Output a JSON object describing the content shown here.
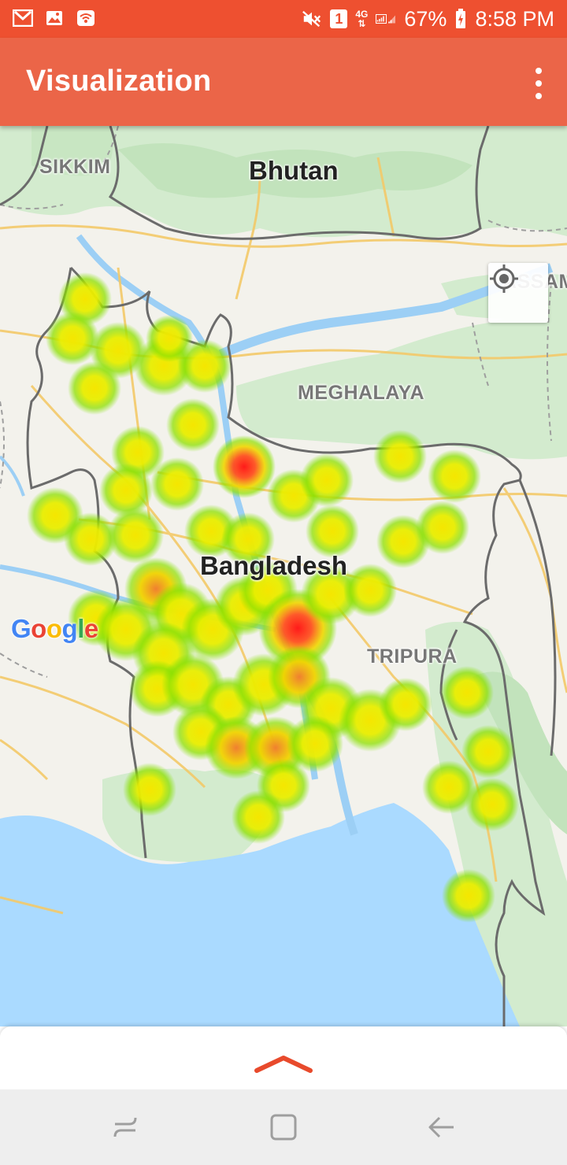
{
  "status_bar": {
    "battery": "67%",
    "time": "8:58 PM",
    "sim_badge": "1",
    "network_type": "4G",
    "icons": [
      "gmail-icon",
      "gallery-icon",
      "wifi-hotspot-icon",
      "mute-icon",
      "sim-icon",
      "signal-icon",
      "battery-icon"
    ]
  },
  "app_bar": {
    "title": "Visualization",
    "menu_icon": "more-vert-icon"
  },
  "map": {
    "labels": {
      "sikkim": "SIKKIM",
      "bhutan": "Bhutan",
      "assam": "ASSAM",
      "meghalaya": "MEGHALAYA",
      "bangladesh": "Bangladesh",
      "tripura": "TRIPURA"
    },
    "attribution": "Google",
    "locate_icon": "my-location-icon",
    "heatmap_colors": {
      "low": "#7ee000",
      "mid": "#f0e000",
      "high": "#ff2020"
    }
  },
  "bottom_sheet": {
    "expand_icon": "chevron-up-icon",
    "accent": "#e84a2c"
  },
  "nav_bar": {
    "icons": [
      "recents-icon",
      "home-icon",
      "back-icon"
    ]
  }
}
